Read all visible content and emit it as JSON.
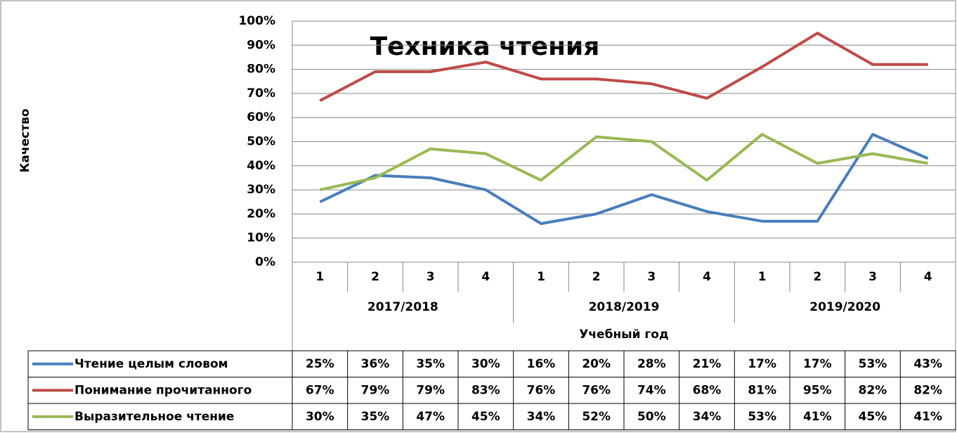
{
  "chart_data": {
    "type": "line",
    "title": "Техника чтения",
    "y_label": "Качество",
    "x_label": "Учебный год",
    "categories": [
      "1",
      "2",
      "3",
      "4",
      "1",
      "2",
      "3",
      "4",
      "1",
      "2",
      "3",
      "4"
    ],
    "category_groups": [
      "2017/2018",
      "2018/2019",
      "2019/2020"
    ],
    "ylim": [
      0,
      100
    ],
    "yticks": [
      {
        "value": 0,
        "label": "0%"
      },
      {
        "value": 10,
        "label": "10%"
      },
      {
        "value": 20,
        "label": "20%"
      },
      {
        "value": 30,
        "label": "30%"
      },
      {
        "value": 40,
        "label": "40%"
      },
      {
        "value": 50,
        "label": "50%"
      },
      {
        "value": 60,
        "label": "60%"
      },
      {
        "value": 70,
        "label": "70%"
      },
      {
        "value": 80,
        "label": "80%"
      },
      {
        "value": 90,
        "label": "90%"
      },
      {
        "value": 100,
        "label": "100%"
      }
    ],
    "grid": true,
    "series": [
      {
        "name": "Чтение целым словом",
        "color": "#4a7ebb",
        "values": [
          25,
          36,
          35,
          30,
          16,
          20,
          28,
          21,
          17,
          17,
          53,
          43
        ],
        "value_labels": [
          "25%",
          "36%",
          "35%",
          "30%",
          "16%",
          "20%",
          "28%",
          "21%",
          "17%",
          "17%",
          "53%",
          "43%"
        ]
      },
      {
        "name": "Понимание прочитанного",
        "color": "#be4b48",
        "values": [
          67,
          79,
          79,
          83,
          76,
          76,
          74,
          68,
          81,
          95,
          82,
          82
        ],
        "value_labels": [
          "67%",
          "79%",
          "79%",
          "83%",
          "76%",
          "76%",
          "74%",
          "68%",
          "81%",
          "95%",
          "82%",
          "82%"
        ]
      },
      {
        "name": "Выразительное чтение",
        "color": "#98b954",
        "values": [
          30,
          35,
          47,
          45,
          34,
          52,
          50,
          34,
          53,
          41,
          45,
          41
        ],
        "value_labels": [
          "30%",
          "35%",
          "47%",
          "45%",
          "34%",
          "52%",
          "50%",
          "34%",
          "53%",
          "41%",
          "45%",
          "41%"
        ]
      }
    ]
  }
}
